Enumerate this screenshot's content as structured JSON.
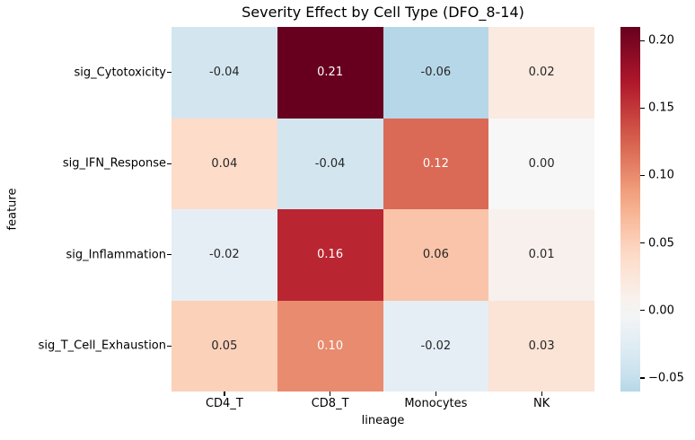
{
  "figure": {
    "background": "#ffffff"
  },
  "chart_data": {
    "type": "heatmap",
    "title": "Severity Effect by Cell Type (DFO_8-14)",
    "xlabel": "lineage",
    "ylabel": "feature",
    "columns": [
      "CD4_T",
      "CD8_T",
      "Monocytes",
      "NK"
    ],
    "rows": [
      "sig_Cytotoxicity",
      "sig_IFN_Response",
      "sig_Inflammation",
      "sig_T_Cell_Exhaustion"
    ],
    "values": [
      [
        -0.04,
        0.21,
        -0.06,
        0.02
      ],
      [
        0.04,
        -0.04,
        0.12,
        0.0
      ],
      [
        -0.02,
        0.16,
        0.06,
        0.01
      ],
      [
        0.05,
        0.1,
        -0.02,
        0.03
      ]
    ],
    "annotations": [
      [
        "-0.04",
        "0.21",
        "-0.06",
        "0.02"
      ],
      [
        "0.04",
        "-0.04",
        "0.12",
        "0.00"
      ],
      [
        "-0.02",
        "0.16",
        "0.06",
        "0.01"
      ],
      [
        "0.05",
        "0.10",
        "-0.02",
        "0.03"
      ]
    ],
    "vmin": -0.06,
    "vmax": 0.21,
    "center": 0,
    "colormap": "RdBu_r",
    "colormap_stops": [
      "#053061",
      "#2166ac",
      "#4393c3",
      "#92c5de",
      "#d1e5f0",
      "#f7f7f7",
      "#fddbc7",
      "#f4a582",
      "#d6604d",
      "#b2182b",
      "#67001f"
    ],
    "colorbar_ticks": [
      {
        "label": "0.20",
        "value": 0.2
      },
      {
        "label": "0.15",
        "value": 0.15
      },
      {
        "label": "0.10",
        "value": 0.1
      },
      {
        "label": "0.05",
        "value": 0.05
      },
      {
        "label": "0.00",
        "value": 0.0
      },
      {
        "label": "−0.05",
        "value": -0.05
      }
    ],
    "annotation_text_colors": {
      "dark": "#262626",
      "light": "#ffffff"
    },
    "legend_position": "right-colorbar",
    "grid": false
  }
}
